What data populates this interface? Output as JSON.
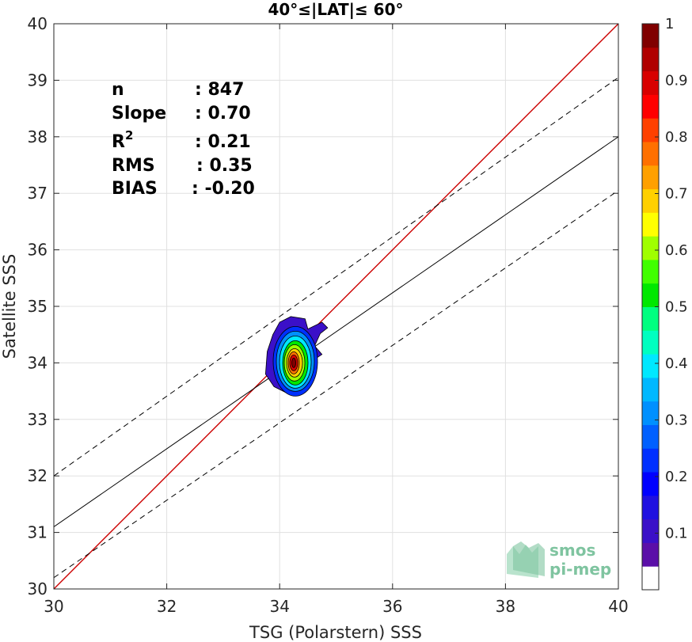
{
  "chart_data": {
    "type": "scatter",
    "title": "40°≤|LAT|≤ 60°",
    "xlabel": "TSG (Polarstern) SSS",
    "ylabel": "Satellite SSS",
    "xlim": [
      30,
      40
    ],
    "ylim": [
      30,
      40
    ],
    "xticks": [
      30,
      32,
      34,
      36,
      38,
      40
    ],
    "yticks": [
      30,
      31,
      32,
      33,
      34,
      35,
      36,
      37,
      38,
      39,
      40
    ],
    "grid": true,
    "stats": [
      {
        "label": "n",
        "value": ": 847"
      },
      {
        "label": "Slope",
        "value": ": 0.70"
      },
      {
        "label": "R",
        "sup": "2",
        "value": ": 0.21"
      },
      {
        "label": "RMS",
        "value": ": 0.35"
      },
      {
        "label": "BIAS",
        "value": ": -0.20"
      }
    ],
    "lines": {
      "identity": {
        "color": "#cc0000",
        "points": [
          [
            30,
            30
          ],
          [
            40,
            40
          ]
        ]
      },
      "regression": {
        "color": "#000000",
        "style": "solid",
        "points": [
          [
            30,
            31.1
          ],
          [
            40,
            38.0
          ]
        ]
      },
      "upper_bound": {
        "color": "#000000",
        "style": "dashed",
        "points": [
          [
            30,
            32.0
          ],
          [
            40,
            39.05
          ]
        ]
      },
      "lower_bound": {
        "color": "#000000",
        "style": "dashed",
        "points": [
          [
            30,
            30.2
          ],
          [
            40,
            37.05
          ]
        ]
      }
    },
    "density_contours": {
      "center": [
        34.25,
        34.0
      ],
      "levels": [
        0.05,
        0.15,
        0.25,
        0.35,
        0.45,
        0.55,
        0.65,
        0.75,
        0.85,
        0.95
      ]
    },
    "colorbar": {
      "range": [
        0,
        1
      ],
      "ticks": [
        0.1,
        0.2,
        0.3,
        0.4,
        0.5,
        0.6,
        0.7,
        0.8,
        0.9,
        1
      ],
      "tick_labels": [
        "0.1",
        "0.2",
        "0.3",
        "0.4",
        "0.5",
        "0.6",
        "0.7",
        "0.8",
        "0.9",
        "1"
      ],
      "colors": [
        "#ffffff",
        "#5b0fa8",
        "#3b10c8",
        "#2010e0",
        "#0000ff",
        "#0030ff",
        "#0060ff",
        "#0090ff",
        "#00b8ff",
        "#00e8ff",
        "#00ffc0",
        "#00ff80",
        "#00e800",
        "#40ff00",
        "#a0ff00",
        "#ffff00",
        "#ffd000",
        "#ffa000",
        "#ff7000",
        "#ff4000",
        "#ff0000",
        "#d80000",
        "#b00000",
        "#800000"
      ]
    }
  },
  "logo": {
    "line1": "smos",
    "line2": "pi-mep"
  }
}
